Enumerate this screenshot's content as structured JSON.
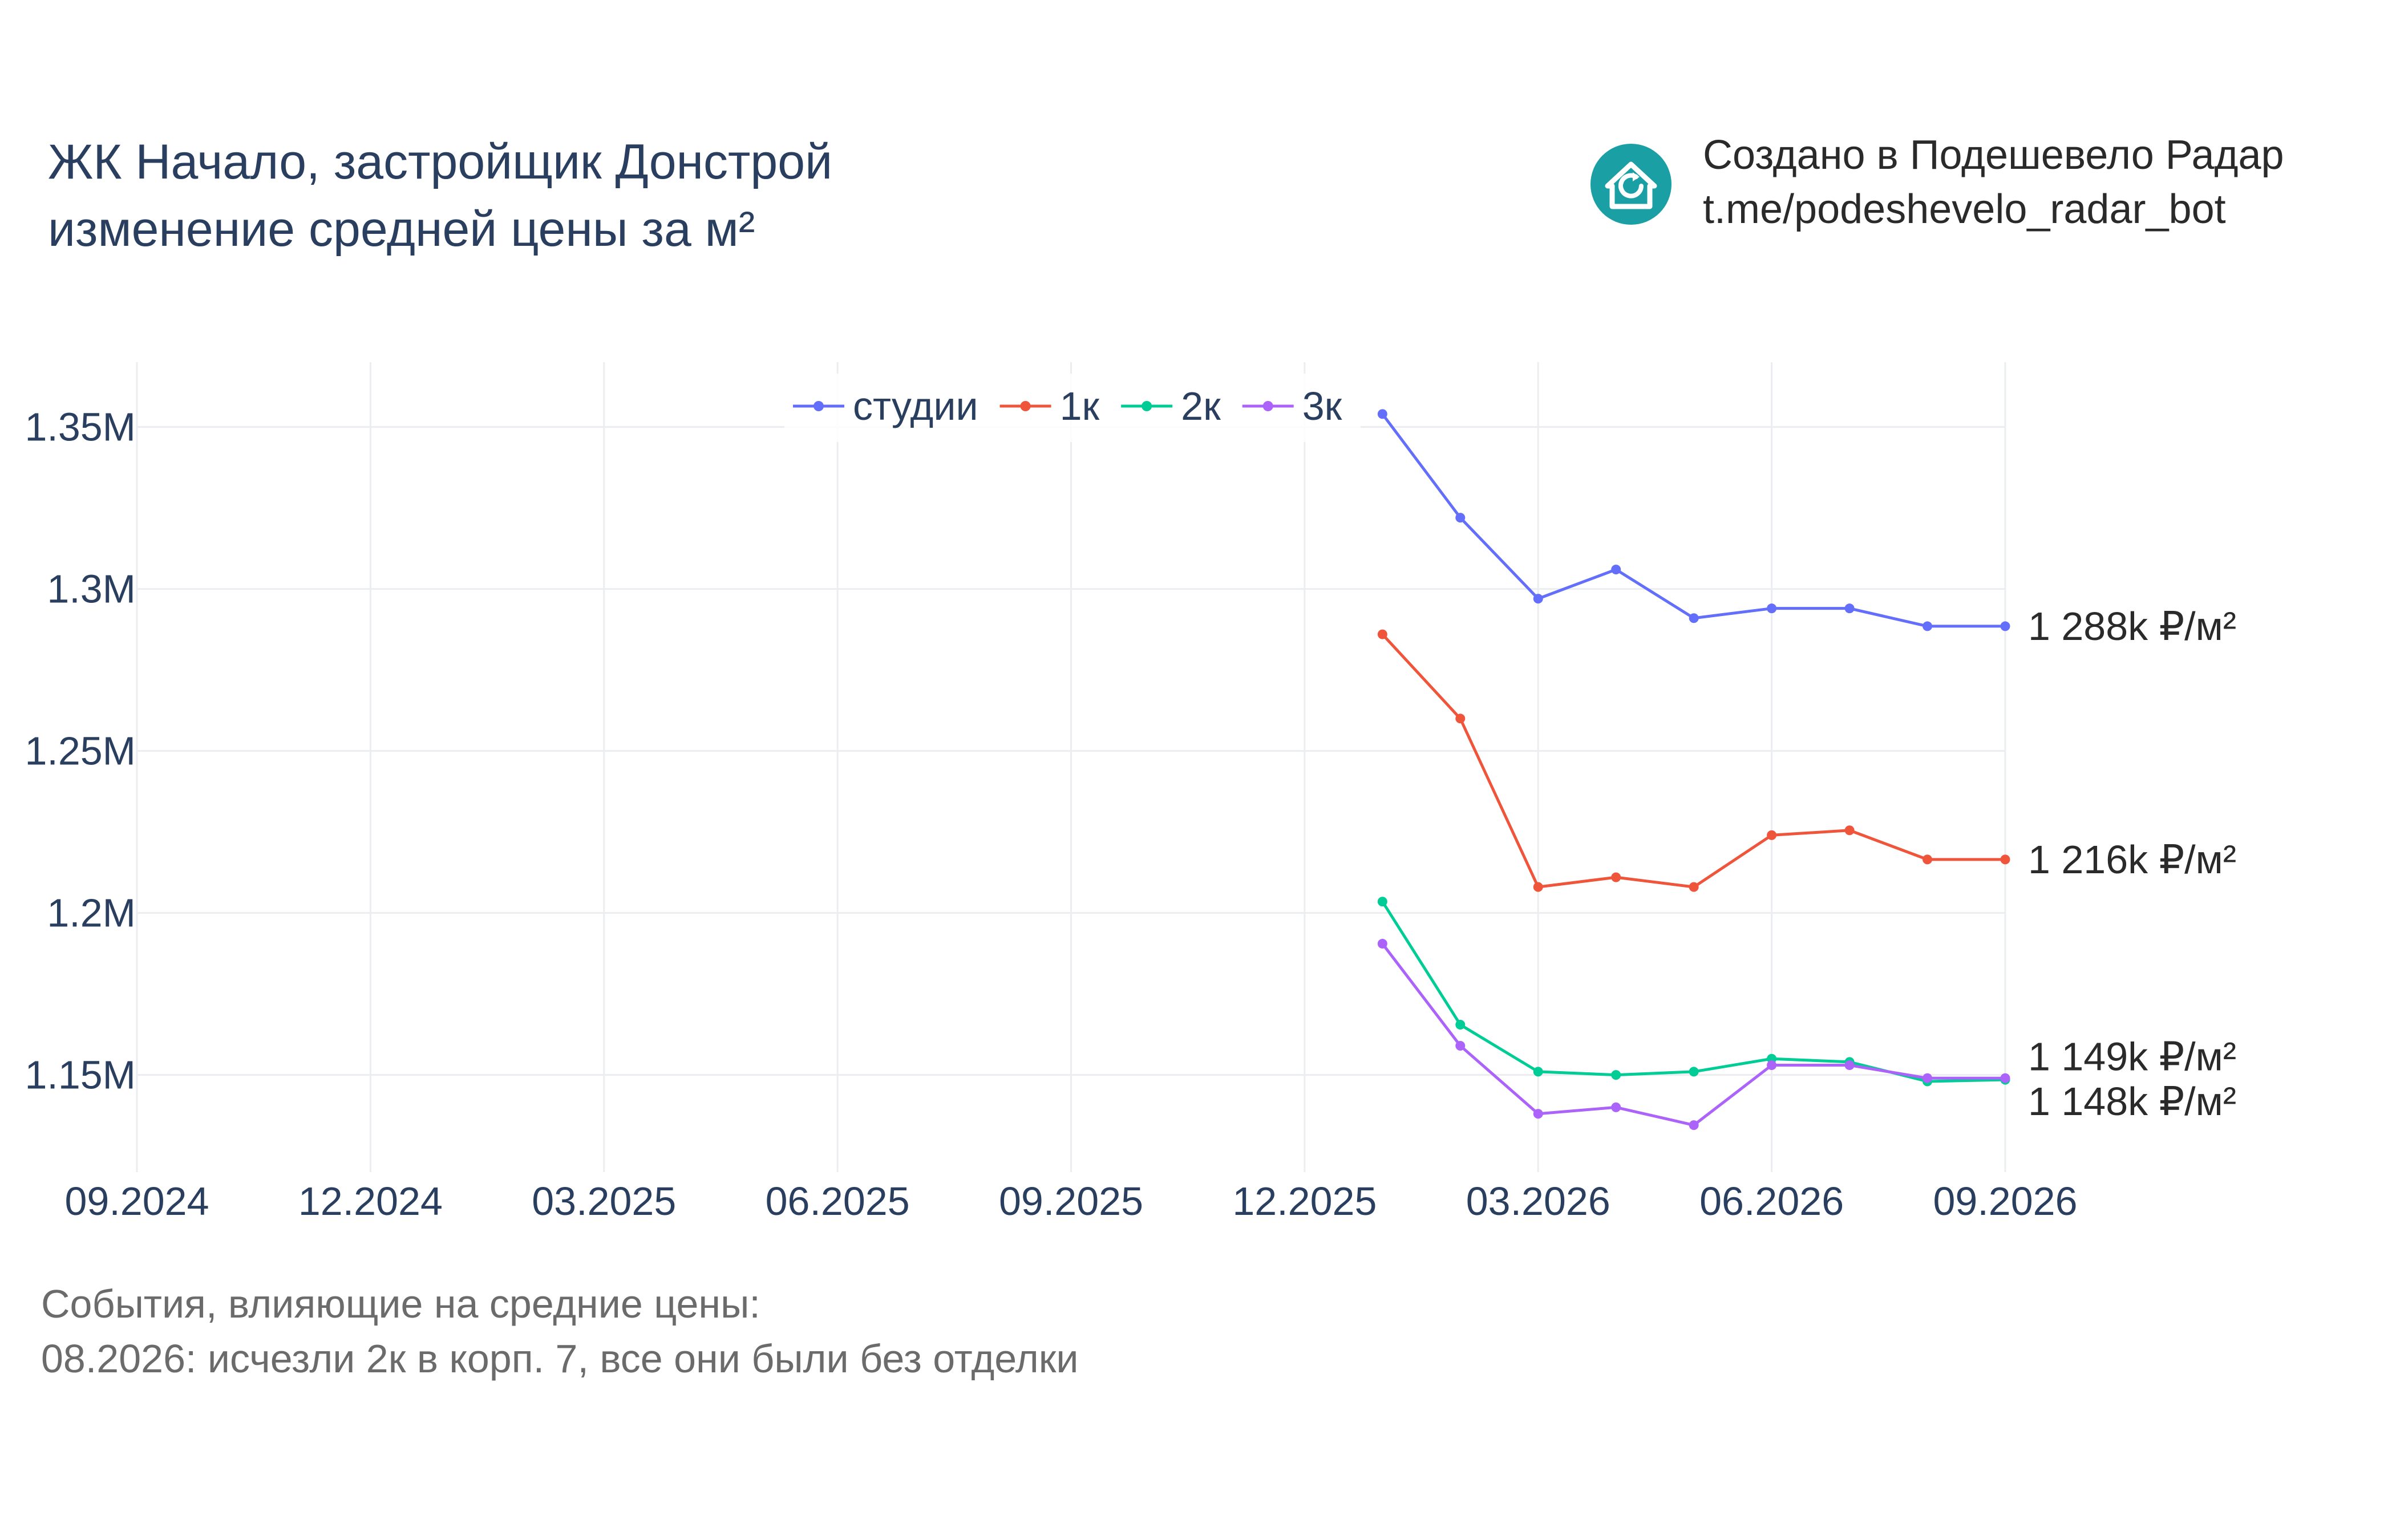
{
  "header": {
    "title_line1": "ЖК Начало, застройщик Донстрой",
    "title_line2": "изменение средней цены за м²"
  },
  "brand": {
    "line1": "Создано в Подешевело Радар",
    "line2": "t.me/podeshevelo_radar_bot",
    "logo_icon": "house-refresh-icon",
    "logo_color": "#1aa0a4"
  },
  "events": {
    "heading": "События, влияющие на средние цены:",
    "items": [
      "08.2026: исчезли 2к в корп. 7, все они были без отделки"
    ]
  },
  "chart_data": {
    "type": "line",
    "title": "",
    "xlabel": "",
    "ylabel": "",
    "x": [
      "01.2026",
      "02.2026",
      "03.2026",
      "04.2026",
      "05.2026",
      "06.2026",
      "07.2026",
      "08.2026",
      "09.2026"
    ],
    "x_ticks": [
      "09.2024",
      "12.2024",
      "03.2025",
      "06.2025",
      "09.2025",
      "12.2025",
      "03.2026",
      "06.2026",
      "09.2026"
    ],
    "y_ticks": [
      "1.15M",
      "1.2M",
      "1.25M",
      "1.3M",
      "1.35M"
    ],
    "ylim": [
      1120000,
      1370000
    ],
    "grid": true,
    "legend_position": "top-center",
    "series": [
      {
        "name": "студии",
        "color": "#636efa",
        "values": [
          1354000,
          1322000,
          1297000,
          1306000,
          1291000,
          1294000,
          1294000,
          1288500,
          1288500
        ],
        "end_label": "1 288k ₽/м²"
      },
      {
        "name": "1к",
        "color": "#ef553b",
        "values": [
          1286000,
          1260000,
          1208000,
          1211000,
          1208000,
          1224000,
          1225500,
          1216500,
          1216500
        ],
        "end_label": "1 216k ₽/м²"
      },
      {
        "name": "2к",
        "color": "#00cc96",
        "values": [
          1203500,
          1165500,
          1151000,
          1150000,
          1151000,
          1155000,
          1154000,
          1148000,
          1148500
        ],
        "end_label": "1 148k ₽/м²"
      },
      {
        "name": "3к",
        "color": "#ab63fa",
        "values": [
          1190500,
          1159000,
          1138000,
          1140000,
          1134500,
          1153000,
          1153000,
          1149000,
          1149000
        ],
        "end_label": "1 149k ₽/м²"
      }
    ]
  }
}
